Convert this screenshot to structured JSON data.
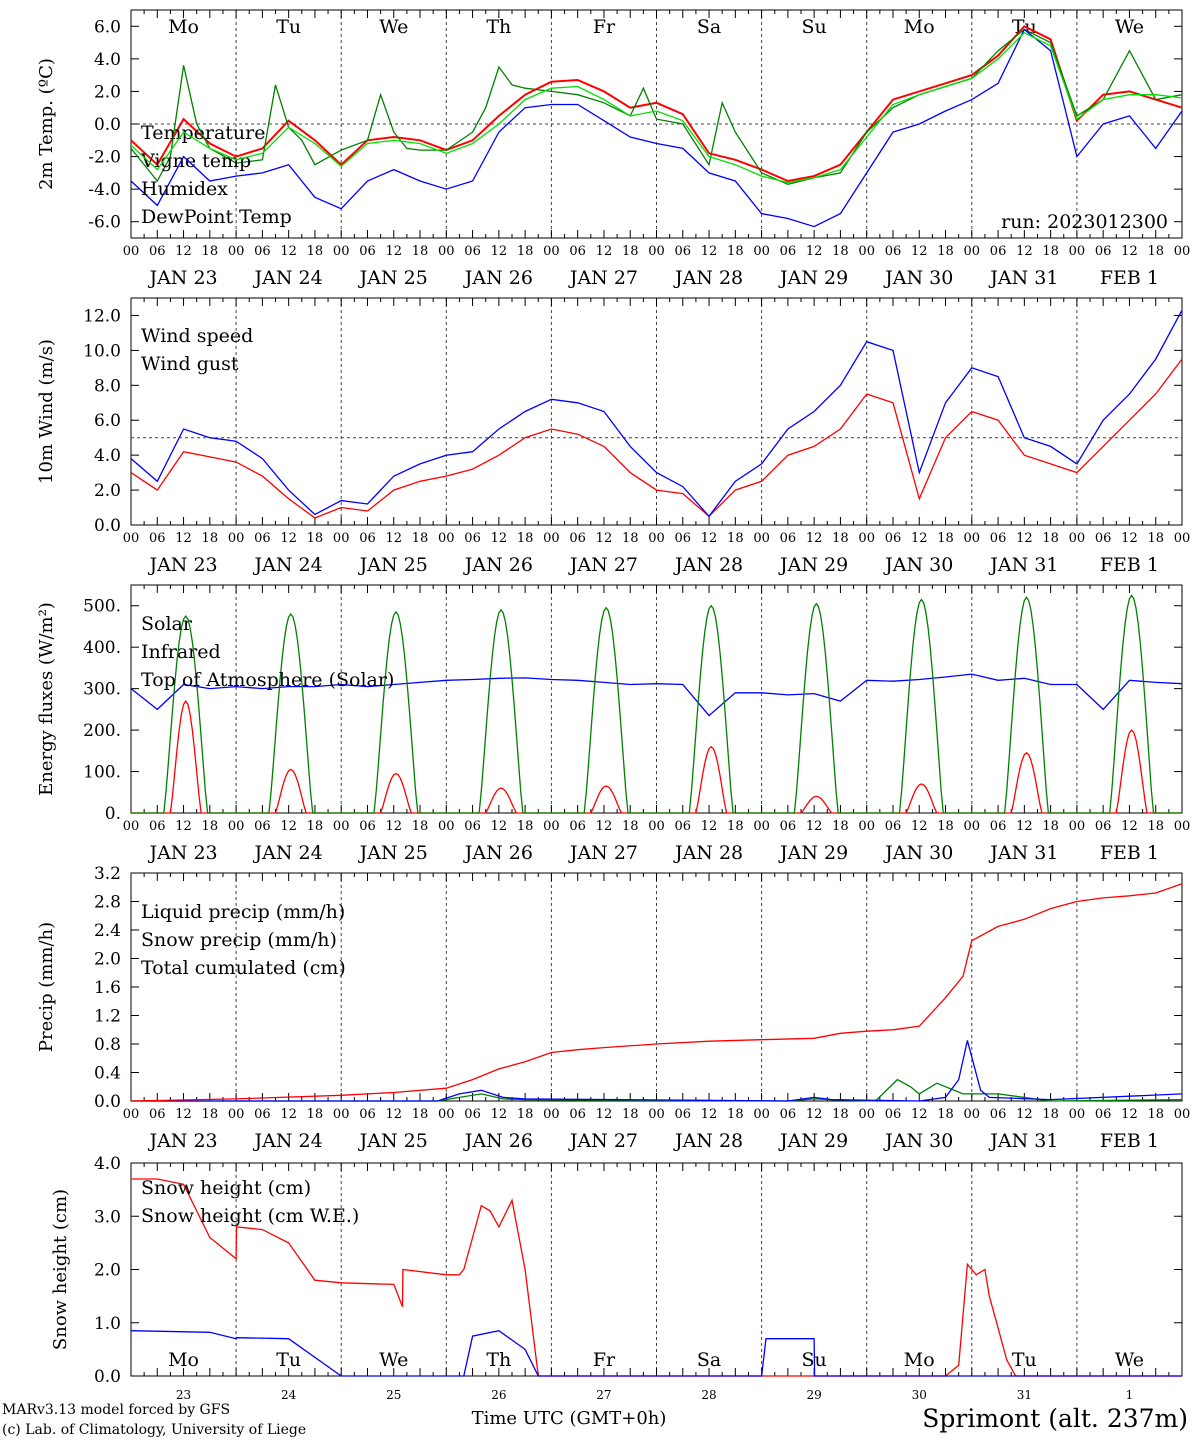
{
  "site": {
    "station_label": "Sprimont (alt. 237m)",
    "credit_line1": "MARv3.13 model forced by GFS",
    "credit_line2": "(c) Lab. of Climatology, University of Liege",
    "x_title": "Time UTC (GMT+0h)",
    "run_label": "run: 2023012300"
  },
  "days": [
    {
      "date": "JAN 23",
      "weekday": "Mo",
      "num": "23",
      "weekend": false
    },
    {
      "date": "JAN 24",
      "weekday": "Tu",
      "num": "24",
      "weekend": false
    },
    {
      "date": "JAN 25",
      "weekday": "We",
      "num": "25",
      "weekend": false
    },
    {
      "date": "JAN 26",
      "weekday": "Th",
      "num": "26",
      "weekend": false
    },
    {
      "date": "JAN 27",
      "weekday": "Fr",
      "num": "27",
      "weekend": false
    },
    {
      "date": "JAN 28",
      "weekday": "Sa",
      "num": "28",
      "weekend": true
    },
    {
      "date": "JAN 29",
      "weekday": "Su",
      "num": "29",
      "weekend": true
    },
    {
      "date": "JAN 30",
      "weekday": "Mo",
      "num": "30",
      "weekend": false
    },
    {
      "date": "JAN 31",
      "weekday": "Tu",
      "num": "31",
      "weekend": false
    },
    {
      "date": "FEB  1",
      "weekday": "We",
      "num": "1",
      "weekend": false
    }
  ],
  "hour_ticks": [
    "00",
    "06",
    "12",
    "18"
  ],
  "hour_end": "00",
  "colors": {
    "red": "#ff0000",
    "green": "#008000",
    "blue": "#0000ff",
    "lime": "#00e000",
    "weekend": "#ff0000",
    "station": "#0000ff"
  },
  "chart_data": [
    {
      "type": "line",
      "ylabel": "2m Temp. (ºC)",
      "ylim": [
        -7,
        7
      ],
      "yticks": [
        "-6.0",
        "-4.0",
        "-2.0",
        "0.0",
        "2.0",
        "4.0",
        "6.0"
      ],
      "ref_line": 0,
      "x_unit": "hours since JAN 23 00 UTC",
      "series": [
        {
          "name": "Temperature",
          "color": "#ff0000",
          "x": [
            0,
            6,
            12,
            18,
            24,
            30,
            36,
            42,
            48,
            54,
            60,
            66,
            72,
            78,
            84,
            90,
            96,
            102,
            108,
            114,
            120,
            126,
            132,
            138,
            144,
            150,
            156,
            162,
            168,
            174,
            180,
            186,
            192,
            198,
            204,
            210,
            216,
            222,
            228,
            234,
            240
          ],
          "y": [
            -1.0,
            -2.5,
            0.3,
            -1.2,
            -2.0,
            -1.5,
            0.2,
            -1.0,
            -2.5,
            -1.0,
            -0.8,
            -1.0,
            -1.6,
            -1.0,
            0.5,
            1.8,
            2.6,
            2.7,
            2.0,
            1.0,
            1.3,
            0.6,
            -1.8,
            -2.2,
            -2.8,
            -3.5,
            -3.2,
            -2.5,
            -0.5,
            1.5,
            2.0,
            2.5,
            3.0,
            4.2,
            6.0,
            5.2,
            0.2,
            1.8,
            2.0,
            1.5,
            1.0
          ]
        },
        {
          "name": "Vigne temp",
          "color": "#008000",
          "x": [
            0,
            6,
            9,
            12,
            15,
            18,
            24,
            30,
            33,
            36,
            39,
            42,
            48,
            54,
            57,
            60,
            63,
            66,
            72,
            78,
            81,
            84,
            87,
            90,
            96,
            102,
            108,
            114,
            117,
            120,
            126,
            132,
            135,
            138,
            144,
            150,
            156,
            162,
            168,
            174,
            180,
            186,
            192,
            198,
            204,
            210,
            216,
            222,
            228,
            234,
            240
          ],
          "y": [
            -1.5,
            -3.5,
            -2.0,
            3.6,
            0.0,
            -1.5,
            -2.4,
            -2.2,
            2.4,
            -0.2,
            -1.0,
            -2.5,
            -1.6,
            -1.0,
            1.8,
            -0.5,
            -1.5,
            -1.6,
            -1.6,
            -0.5,
            1.0,
            3.5,
            2.4,
            2.2,
            2.0,
            1.8,
            1.3,
            0.5,
            2.2,
            0.3,
            0.0,
            -2.5,
            1.3,
            -0.5,
            -3.0,
            -3.7,
            -3.3,
            -3.0,
            -0.5,
            1.0,
            1.8,
            2.3,
            2.8,
            4.5,
            5.8,
            5.0,
            0.5,
            1.5,
            4.5,
            1.5,
            1.8
          ]
        },
        {
          "name": "Humidex",
          "color": "#0000ff",
          "x": [
            0,
            6,
            12,
            18,
            24,
            30,
            36,
            42,
            48,
            54,
            60,
            66,
            72,
            78,
            84,
            90,
            96,
            102,
            108,
            114,
            120,
            126,
            132,
            138,
            144,
            150,
            156,
            162,
            168,
            174,
            180,
            186,
            192,
            198,
            204,
            210,
            216,
            222,
            228,
            234,
            240
          ],
          "y": [
            -3.5,
            -5.0,
            -2.0,
            -3.5,
            -3.2,
            -3.0,
            -2.5,
            -4.5,
            -5.2,
            -3.5,
            -2.8,
            -3.5,
            -4.0,
            -3.5,
            -0.5,
            1.0,
            1.2,
            1.2,
            0.2,
            -0.8,
            -1.2,
            -1.5,
            -3.0,
            -3.5,
            -5.5,
            -5.8,
            -6.3,
            -5.5,
            -3.0,
            -0.5,
            0.0,
            0.8,
            1.5,
            2.5,
            5.8,
            4.5,
            -2.0,
            0.0,
            0.5,
            -1.5,
            0.8
          ]
        },
        {
          "name": "DewPoint Temp",
          "color": "#00e000",
          "x": [
            0,
            6,
            12,
            18,
            24,
            30,
            36,
            42,
            48,
            54,
            60,
            66,
            72,
            78,
            84,
            90,
            96,
            102,
            108,
            114,
            120,
            126,
            132,
            138,
            144,
            150,
            156,
            162,
            168,
            174,
            180,
            186,
            192,
            198,
            204,
            210,
            216,
            222,
            228,
            234,
            240
          ],
          "y": [
            -1.3,
            -2.8,
            -0.5,
            -1.5,
            -2.2,
            -1.8,
            -0.2,
            -1.2,
            -2.6,
            -1.2,
            -1.0,
            -1.2,
            -1.8,
            -1.2,
            0.0,
            1.5,
            2.2,
            2.3,
            1.5,
            0.5,
            0.8,
            0.2,
            -2.0,
            -2.5,
            -3.2,
            -3.6,
            -3.3,
            -2.8,
            -0.8,
            1.2,
            1.8,
            2.3,
            2.8,
            4.0,
            5.6,
            4.8,
            0.3,
            1.5,
            1.8,
            1.8,
            1.6
          ]
        }
      ]
    },
    {
      "type": "line",
      "ylabel": "10m Wind (m/s)",
      "ylim": [
        0,
        13
      ],
      "yticks": [
        "0.0",
        "2.0",
        "4.0",
        "6.0",
        "8.0",
        "10.0",
        "12.0"
      ],
      "ref_line": 5,
      "series": [
        {
          "name": "Wind speed",
          "color": "#ff0000",
          "x": [
            0,
            6,
            12,
            18,
            24,
            30,
            36,
            42,
            48,
            54,
            60,
            66,
            72,
            78,
            84,
            90,
            96,
            102,
            108,
            114,
            120,
            126,
            132,
            138,
            144,
            150,
            156,
            162,
            168,
            174,
            180,
            186,
            192,
            198,
            204,
            210,
            216,
            222,
            228,
            234,
            240
          ],
          "y": [
            3.0,
            2.0,
            4.2,
            3.9,
            3.6,
            2.8,
            1.5,
            0.4,
            1.0,
            0.8,
            2.0,
            2.5,
            2.8,
            3.2,
            4.0,
            5.0,
            5.5,
            5.2,
            4.5,
            3.0,
            2.0,
            1.8,
            0.5,
            2.0,
            2.5,
            4.0,
            4.5,
            5.5,
            7.5,
            7.0,
            1.5,
            5.0,
            6.5,
            6.0,
            4.0,
            3.5,
            3.0,
            4.5,
            6.0,
            7.5,
            9.5
          ]
        },
        {
          "name": "Wind gust",
          "color": "#0000ff",
          "x": [
            0,
            6,
            12,
            18,
            24,
            30,
            36,
            42,
            48,
            54,
            60,
            66,
            72,
            78,
            84,
            90,
            96,
            102,
            108,
            114,
            120,
            126,
            132,
            138,
            144,
            150,
            156,
            162,
            168,
            174,
            180,
            186,
            192,
            198,
            204,
            210,
            216,
            222,
            228,
            234,
            240
          ],
          "y": [
            3.8,
            2.5,
            5.5,
            5.0,
            4.8,
            3.8,
            2.0,
            0.6,
            1.4,
            1.2,
            2.8,
            3.5,
            4.0,
            4.2,
            5.5,
            6.5,
            7.2,
            7.0,
            6.5,
            4.5,
            3.0,
            2.2,
            0.5,
            2.5,
            3.5,
            5.5,
            6.5,
            8.0,
            10.5,
            10.0,
            3.0,
            7.0,
            9.0,
            8.5,
            5.0,
            4.5,
            3.5,
            6.0,
            7.5,
            9.5,
            12.3
          ]
        }
      ]
    },
    {
      "type": "line",
      "ylabel": "Energy fluxes (W/m²)",
      "ylim": [
        0,
        550
      ],
      "yticks": [
        "0.",
        "100.",
        "200.",
        "300.",
        "400.",
        "500."
      ],
      "series": [
        {
          "name": "Solar",
          "color": "#ff0000",
          "peaks": [
            270,
            105,
            95,
            60,
            65,
            160,
            40,
            70,
            145,
            200
          ]
        },
        {
          "name": "Infrared",
          "color": "#0000ff",
          "x": [
            0,
            6,
            12,
            18,
            24,
            30,
            36,
            42,
            48,
            54,
            60,
            66,
            72,
            78,
            84,
            90,
            96,
            102,
            108,
            114,
            120,
            126,
            132,
            138,
            144,
            150,
            156,
            162,
            168,
            174,
            180,
            186,
            192,
            198,
            204,
            210,
            216,
            222,
            228,
            234,
            240
          ],
          "y": [
            300,
            250,
            310,
            300,
            305,
            300,
            305,
            305,
            310,
            305,
            310,
            315,
            320,
            322,
            325,
            326,
            322,
            320,
            315,
            310,
            312,
            310,
            235,
            290,
            290,
            285,
            288,
            270,
            320,
            318,
            322,
            328,
            335,
            320,
            325,
            310,
            310,
            250,
            320,
            315,
            312
          ]
        },
        {
          "name": "Top of Atmosphere (Solar)",
          "color": "#008000",
          "peaks": [
            475,
            480,
            485,
            490,
            495,
            500,
            505,
            515,
            520,
            525
          ]
        }
      ]
    },
    {
      "type": "line",
      "ylabel": "Precip (mm/h)",
      "ylim": [
        0,
        3.2
      ],
      "yticks": [
        "0.0",
        "0.4",
        "0.8",
        "1.2",
        "1.6",
        "2.0",
        "2.4",
        "2.8",
        "3.2"
      ],
      "series": [
        {
          "name": "Liquid precip (mm/h)",
          "color": "#008000",
          "x": [
            0,
            70,
            75,
            80,
            85,
            90,
            150,
            156,
            160,
            170,
            175,
            178,
            180,
            184,
            190,
            198,
            210,
            240
          ],
          "y": [
            0,
            0,
            0.05,
            0.1,
            0.03,
            0.02,
            0,
            0.03,
            0.02,
            0,
            0.3,
            0.2,
            0.1,
            0.25,
            0.1,
            0.1,
            0.0,
            0.02
          ]
        },
        {
          "name": "Snow precip (mm/h)",
          "color": "#0000ff",
          "x": [
            0,
            70,
            75,
            80,
            85,
            90,
            150,
            156,
            160,
            180,
            186,
            189,
            191,
            194,
            196,
            210,
            240
          ],
          "y": [
            0,
            0,
            0.1,
            0.15,
            0.05,
            0.03,
            0,
            0.05,
            0.02,
            0,
            0.05,
            0.3,
            0.85,
            0.15,
            0.05,
            0.02,
            0.1
          ]
        },
        {
          "name": "Total cumulated (cm)",
          "color": "#ff0000",
          "x": [
            0,
            24,
            48,
            60,
            72,
            78,
            84,
            90,
            96,
            102,
            108,
            120,
            132,
            144,
            156,
            162,
            168,
            174,
            180,
            186,
            190,
            192,
            198,
            204,
            210,
            216,
            222,
            228,
            234,
            240
          ],
          "y": [
            0,
            0.03,
            0.08,
            0.12,
            0.18,
            0.3,
            0.45,
            0.55,
            0.68,
            0.72,
            0.75,
            0.8,
            0.84,
            0.86,
            0.88,
            0.95,
            0.98,
            1.0,
            1.05,
            1.45,
            1.75,
            2.25,
            2.45,
            2.55,
            2.7,
            2.8,
            2.85,
            2.88,
            2.92,
            3.05
          ]
        }
      ]
    },
    {
      "type": "line",
      "ylabel": "Snow height (cm)",
      "ylim": [
        0,
        4
      ],
      "yticks": [
        "0.0",
        "1.0",
        "2.0",
        "3.0",
        "4.0"
      ],
      "series": [
        {
          "name": "Snow height (cm)",
          "color": "#ff0000",
          "x": [
            0,
            6,
            12,
            18,
            24,
            24.1,
            30,
            36,
            42,
            48,
            60,
            62,
            62.1,
            72,
            75,
            76,
            78,
            80,
            82,
            84,
            87,
            90,
            93,
            102,
            108,
            120,
            130,
            150,
            170,
            180,
            186,
            189,
            191,
            193,
            195,
            196,
            198,
            200,
            202,
            240
          ],
          "y": [
            3.7,
            3.7,
            3.6,
            2.6,
            2.2,
            2.8,
            2.75,
            2.5,
            1.8,
            1.75,
            1.72,
            1.3,
            2.0,
            1.9,
            1.9,
            2.0,
            2.6,
            3.2,
            3.1,
            2.8,
            3.3,
            2.0,
            0.0,
            0.0,
            0.0,
            0.0,
            0.0,
            0.0,
            0.0,
            0.0,
            0.0,
            0.2,
            2.1,
            1.9,
            2.0,
            1.5,
            0.9,
            0.3,
            0.0,
            0.0
          ]
        },
        {
          "name": "Snow height (cm W.E.)",
          "color": "#0000ff",
          "x": [
            0,
            18,
            24,
            24.1,
            36,
            48,
            62,
            72,
            76,
            78,
            84,
            90,
            93,
            102,
            120,
            144,
            145,
            156,
            156.1,
            170,
            180,
            240
          ],
          "y": [
            0.85,
            0.82,
            0.7,
            0.72,
            0.7,
            0.0,
            0.0,
            0.0,
            0.0,
            0.75,
            0.85,
            0.5,
            0.0,
            0.0,
            0.0,
            0.0,
            0.7,
            0.7,
            0.0,
            0.0,
            0.0,
            0.0
          ]
        }
      ]
    }
  ]
}
